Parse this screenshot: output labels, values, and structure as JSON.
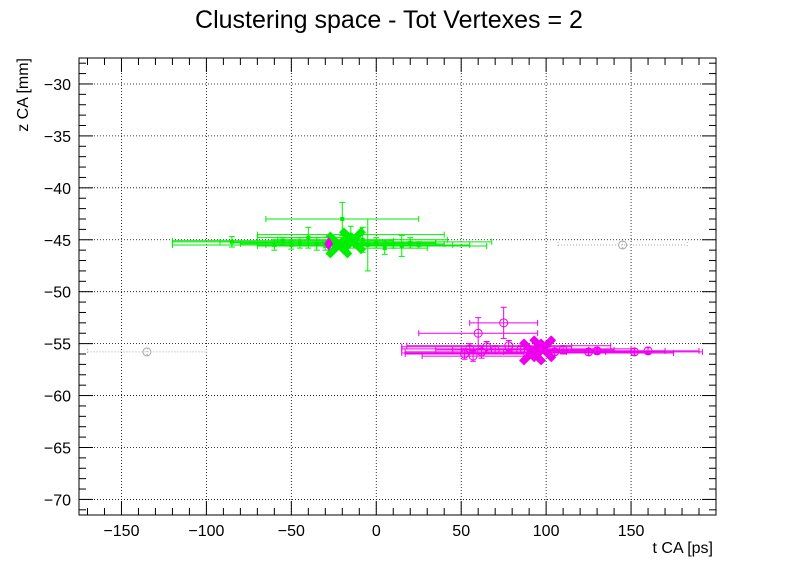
{
  "chart_data": {
    "type": "scatter",
    "title": "Clustering space - Tot Vertexes = 2",
    "xlabel": "t CA [ps]",
    "ylabel": "z CA [mm]",
    "xlim": [
      -175,
      200
    ],
    "ylim": [
      -71.5,
      -27.5
    ],
    "xticks": [
      -150,
      -100,
      -50,
      0,
      50,
      100,
      150
    ],
    "xtick_labels": [
      "−150",
      "−100",
      "−50",
      "0",
      "50",
      "100",
      "150"
    ],
    "yticks": [
      -30,
      -35,
      -40,
      -45,
      -50,
      -55,
      -60,
      -65,
      -70
    ],
    "ytick_labels": [
      "−30",
      "−35",
      "−40",
      "−45",
      "−50",
      "−55",
      "−60",
      "−65",
      "−70"
    ],
    "grid": true,
    "colors": {
      "cluster1": "#00ee00",
      "cluster2": "#ee00ee",
      "noise": "#aaaaaa"
    },
    "series": [
      {
        "points": [
          {
            "x": -55,
            "y": -45.1,
            "xerr": 65,
            "yerr": 0.3
          },
          {
            "x": -50,
            "y": -45.5,
            "xerr": 70,
            "yerr": 0.4
          },
          {
            "x": -45,
            "y": -45.3,
            "xerr": 40,
            "yerr": 0.5
          },
          {
            "x": -40,
            "y": -44.8,
            "xerr": 30,
            "yerr": 1.0
          },
          {
            "x": -35,
            "y": -45.4,
            "xerr": 45,
            "yerr": 0.6
          },
          {
            "x": -30,
            "y": -45.6,
            "xerr": 40,
            "yerr": 0.4
          },
          {
            "x": -20,
            "y": -43.0,
            "xerr": 45,
            "yerr": 1.6
          },
          {
            "x": -15,
            "y": -44.5,
            "xerr": 55,
            "yerr": 0.8
          },
          {
            "x": -12,
            "y": -45.2,
            "xerr": 80,
            "yerr": 0.5
          },
          {
            "x": -8,
            "y": -45.0,
            "xerr": 50,
            "yerr": 1.2
          },
          {
            "x": -5,
            "y": -45.5,
            "xerr": 60,
            "yerr": 2.5
          },
          {
            "x": 0,
            "y": -45.3,
            "xerr": 35,
            "yerr": 0.5
          },
          {
            "x": 5,
            "y": -45.8,
            "xerr": 25,
            "yerr": 0.6
          },
          {
            "x": 10,
            "y": -45.4,
            "xerr": 30,
            "yerr": 0.4
          },
          {
            "x": 15,
            "y": -45.6,
            "xerr": 50,
            "yerr": 1.0
          },
          {
            "x": 20,
            "y": -45.3,
            "xerr": 15,
            "yerr": 0.5
          },
          {
            "x": 25,
            "y": -45.5,
            "xerr": 20,
            "yerr": 0.3
          },
          {
            "x": -60,
            "y": -45.5,
            "xerr": 60,
            "yerr": 0.5
          },
          {
            "x": -85,
            "y": -45.2,
            "xerr": 35,
            "yerr": 0.5
          }
        ],
        "vertex_markers": [
          {
            "x": -22,
            "y": -45.5
          },
          {
            "x": -14,
            "y": -45.1
          }
        ],
        "seed": {
          "x": -28,
          "y": -45.4
        }
      },
      {
        "points": [
          {
            "x": 55,
            "y": -55.5,
            "xerr": 40,
            "yerr": 0.5
          },
          {
            "x": 60,
            "y": -54.0,
            "xerr": 35,
            "yerr": 1.5
          },
          {
            "x": 62,
            "y": -55.8,
            "xerr": 45,
            "yerr": 0.6
          },
          {
            "x": 65,
            "y": -55.3,
            "xerr": 50,
            "yerr": 0.5
          },
          {
            "x": 70,
            "y": -55.6,
            "xerr": 35,
            "yerr": 0.4
          },
          {
            "x": 75,
            "y": -53.0,
            "xerr": 20,
            "yerr": 1.5
          },
          {
            "x": 78,
            "y": -55.2,
            "xerr": 60,
            "yerr": 0.5
          },
          {
            "x": 85,
            "y": -55.6,
            "xerr": 40,
            "yerr": 0.4
          },
          {
            "x": 95,
            "y": -55.9,
            "xerr": 80,
            "yerr": 0.4
          },
          {
            "x": 100,
            "y": -55.5,
            "xerr": 50,
            "yerr": 0.5
          },
          {
            "x": 105,
            "y": -55.8,
            "xerr": 30,
            "yerr": 0.3
          },
          {
            "x": 110,
            "y": -55.6,
            "xerr": 30,
            "yerr": 0.4
          },
          {
            "x": 125,
            "y": -55.8,
            "xerr": 35,
            "yerr": 0.3
          },
          {
            "x": 130,
            "y": -55.7,
            "xerr": 40,
            "yerr": 0.3
          },
          {
            "x": 152,
            "y": -55.8,
            "xerr": 40,
            "yerr": 0.3
          },
          {
            "x": 160,
            "y": -55.7,
            "xerr": 30,
            "yerr": 0.3
          },
          {
            "x": 52,
            "y": -56.0,
            "xerr": 35,
            "yerr": 0.5
          },
          {
            "x": 57,
            "y": -56.2,
            "xerr": 30,
            "yerr": 0.5
          }
        ],
        "vertex_markers": [
          {
            "x": 92,
            "y": -55.8
          },
          {
            "x": 98,
            "y": -55.5
          }
        ]
      },
      {
        "points": [
          {
            "x": -135,
            "y": -55.8,
            "xerr": 35,
            "yerr": 0.3
          },
          {
            "x": 145,
            "y": -45.5,
            "xerr": 38,
            "yerr": 0.3
          }
        ]
      }
    ]
  }
}
